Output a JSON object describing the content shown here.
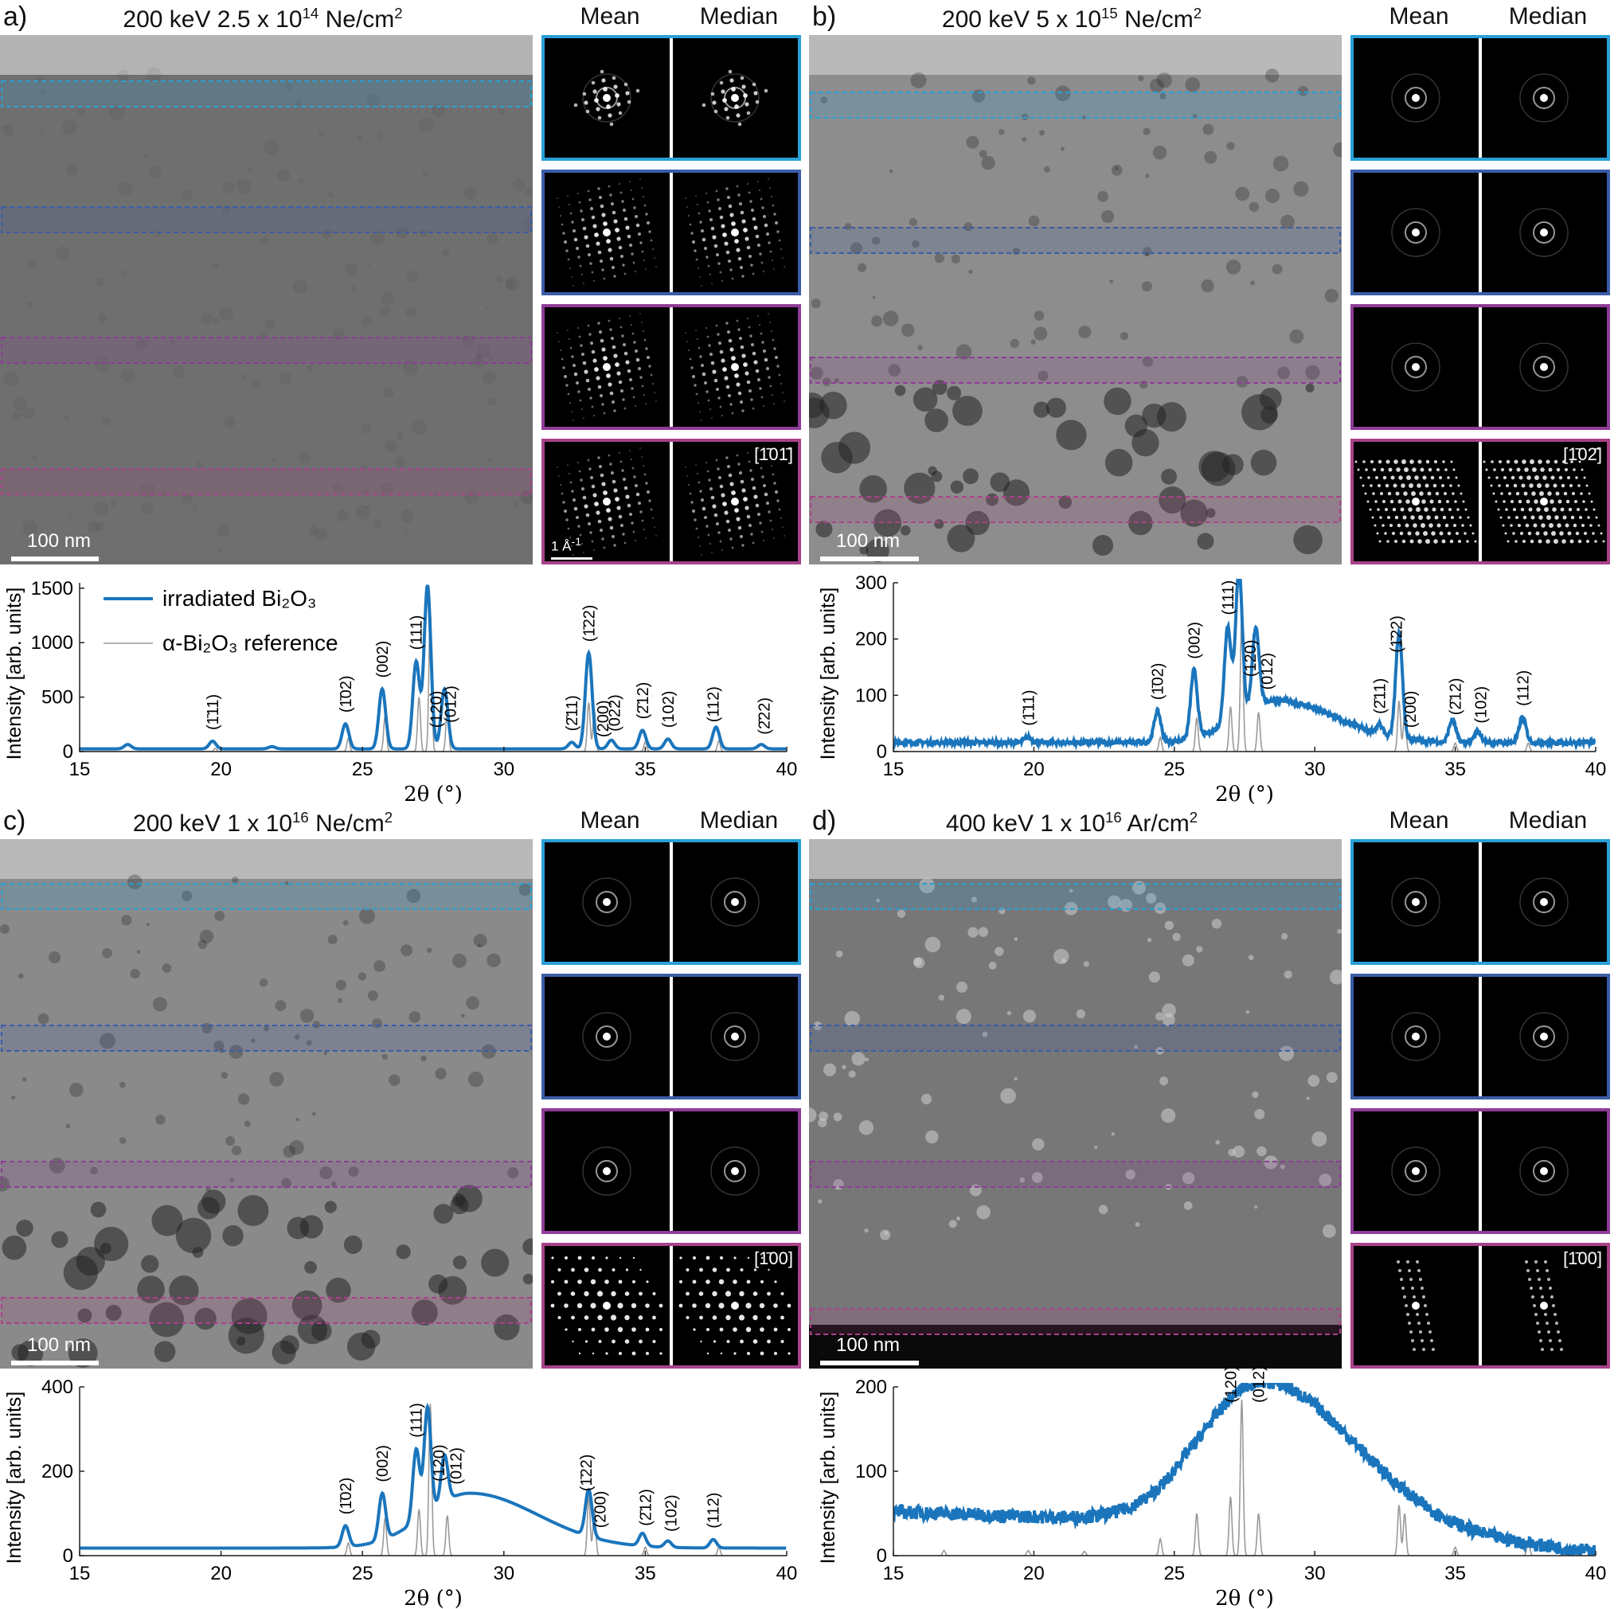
{
  "panels": [
    {
      "key": "a",
      "label": "a)",
      "title_prefix": "200 keV 2.5 x 10",
      "title_exp": "14",
      "title_suffix": " Ne/cm",
      "title_unit_exp": "2",
      "mean_label": "Mean",
      "median_label": "Median",
      "scale_label": "100 nm",
      "kscale_label": "1 Å",
      "zone_axis": "[1̄01̄]",
      "micro_tone": "#6f6f6f",
      "patterns": [
        "spot",
        "lattice",
        "lattice",
        "lattice"
      ],
      "chart_data": {
        "type": "line",
        "xlabel": "2θ (°)",
        "ylabel": "Intensity [arb. units]",
        "xlim": [
          15,
          40
        ],
        "ylim": [
          0,
          1550
        ],
        "xticks": [
          15,
          20,
          25,
          30,
          35,
          40
        ],
        "yticks": [
          0,
          500,
          1000,
          1500
        ],
        "series": [
          {
            "name": "irradiated Bi₂O₃",
            "color": "#1a75bc",
            "baseline": 25,
            "broad": [],
            "peaks": [
              [
                16.7,
                40
              ],
              [
                19.7,
                70
              ],
              [
                21.8,
                20
              ],
              [
                24.4,
                230
              ],
              [
                25.7,
                550
              ],
              [
                26.9,
                800
              ],
              [
                27.3,
                1500
              ],
              [
                27.9,
                550
              ],
              [
                32.4,
                60
              ],
              [
                33.0,
                880
              ],
              [
                33.8,
                80
              ],
              [
                34.9,
                170
              ],
              [
                35.8,
                90
              ],
              [
                37.5,
                200
              ],
              [
                39.1,
                40
              ]
            ]
          },
          {
            "name": "α-Bi₂O₃ reference",
            "color": "#9a9a9a",
            "baseline": 0,
            "broad": [],
            "peaks": [
              [
                19.8,
                30
              ],
              [
                24.5,
                120
              ],
              [
                25.8,
                330
              ],
              [
                27.0,
                500
              ],
              [
                27.4,
                1300
              ],
              [
                28.0,
                400
              ],
              [
                33.0,
                450
              ],
              [
                33.2,
                380
              ],
              [
                35.0,
                90
              ],
              [
                37.6,
                100
              ]
            ]
          }
        ],
        "annotations": [
          {
            "x": 19.7,
            "label": "(1̄11)"
          },
          {
            "x": 24.4,
            "label": "(1̄02)"
          },
          {
            "x": 25.7,
            "label": "(002)"
          },
          {
            "x": 26.9,
            "label": "(111)"
          },
          {
            "x": 27.6,
            "label": "(120)"
          },
          {
            "x": 28.1,
            "label": "(012)"
          },
          {
            "x": 32.4,
            "label": "(2̄11)"
          },
          {
            "x": 33.0,
            "label": "(1̄22)"
          },
          {
            "x": 33.5,
            "label": "(200)"
          },
          {
            "x": 33.9,
            "label": "(022)"
          },
          {
            "x": 34.9,
            "label": "(2̄12)"
          },
          {
            "x": 35.8,
            "label": "(102)"
          },
          {
            "x": 37.4,
            "label": "(112)"
          },
          {
            "x": 39.2,
            "label": "(2̄22)"
          }
        ],
        "legend": "top-left"
      }
    },
    {
      "key": "b",
      "label": "b)",
      "title_prefix": "200 keV 5 x 10",
      "title_exp": "15",
      "title_suffix": " Ne/cm",
      "title_unit_exp": "2",
      "mean_label": "Mean",
      "median_label": "Median",
      "scale_label": "100 nm",
      "zone_axis": "[1̄02̄]",
      "micro_tone": "#8d8d8d",
      "patterns": [
        "ring",
        "ring",
        "ring",
        "rows"
      ],
      "chart_data": {
        "type": "line",
        "xlabel": "2θ (°)",
        "ylabel": "Intensity [arb. units]",
        "xlim": [
          15,
          40
        ],
        "ylim": [
          0,
          300
        ],
        "xticks": [
          15,
          20,
          25,
          30,
          35,
          40
        ],
        "yticks": [
          0,
          100,
          200,
          300
        ],
        "series": [
          {
            "name": "irradiated Bi₂O₃",
            "color": "#1a75bc",
            "baseline": 16,
            "broad": [
              [
                28.6,
                1.4,
                75
              ]
            ],
            "peaks": [
              [
                19.8,
                10
              ],
              [
                24.4,
                55
              ],
              [
                25.7,
                120
              ],
              [
                26.9,
                170
              ],
              [
                27.3,
                260
              ],
              [
                27.9,
                140
              ],
              [
                32.3,
                15
              ],
              [
                33.0,
                185
              ],
              [
                34.9,
                40
              ],
              [
                35.8,
                20
              ],
              [
                37.4,
                45
              ]
            ]
          },
          {
            "name": "α-Bi₂O₃ reference",
            "color": "#9a9a9a",
            "baseline": 0,
            "broad": [],
            "peaks": [
              [
                24.5,
                25
              ],
              [
                25.8,
                60
              ],
              [
                27.0,
                80
              ],
              [
                27.4,
                240
              ],
              [
                28.0,
                70
              ],
              [
                33.0,
                90
              ],
              [
                33.2,
                70
              ],
              [
                35.0,
                15
              ],
              [
                37.6,
                15
              ]
            ]
          }
        ],
        "annotations": [
          {
            "x": 19.8,
            "label": "(1̄11)"
          },
          {
            "x": 24.4,
            "label": "(1̄02)"
          },
          {
            "x": 25.7,
            "label": "(002)"
          },
          {
            "x": 26.9,
            "label": "(111)"
          },
          {
            "x": 27.7,
            "label": "(120)"
          },
          {
            "x": 28.3,
            "label": "(012)"
          },
          {
            "x": 32.3,
            "label": "(2̄11)"
          },
          {
            "x": 32.9,
            "label": "(1̄22)"
          },
          {
            "x": 33.4,
            "label": "(200)"
          },
          {
            "x": 35.0,
            "label": "(2̄12)"
          },
          {
            "x": 35.9,
            "label": "(102)"
          },
          {
            "x": 37.4,
            "label": "(112)"
          }
        ]
      }
    },
    {
      "key": "c",
      "label": "c)",
      "title_prefix": "200 keV 1 x 10",
      "title_exp": "16",
      "title_suffix": " Ne/cm",
      "title_unit_exp": "2",
      "mean_label": "Mean",
      "median_label": "Median",
      "scale_label": "100 nm",
      "zone_axis": "[1̄00]",
      "micro_tone": "#8a8a8a",
      "patterns": [
        "ring",
        "ring",
        "ring",
        "hex"
      ],
      "chart_data": {
        "type": "line",
        "xlabel": "2θ (°)",
        "ylabel": "Intensity [arb. units]",
        "xlim": [
          15,
          40
        ],
        "ylim": [
          0,
          400
        ],
        "xticks": [
          15,
          20,
          25,
          30,
          35,
          40
        ],
        "yticks": [
          0,
          200,
          400
        ],
        "series": [
          {
            "name": "irradiated Bi₂O₃",
            "color": "#1a75bc",
            "baseline": 18,
            "broad": [
              [
                28.8,
                1.6,
                130
              ]
            ],
            "peaks": [
              [
                24.4,
                50
              ],
              [
                25.7,
                110
              ],
              [
                26.9,
                170
              ],
              [
                27.3,
                250
              ],
              [
                27.9,
                110
              ],
              [
                33.0,
                110
              ],
              [
                34.9,
                30
              ],
              [
                35.8,
                15
              ],
              [
                37.4,
                20
              ]
            ]
          },
          {
            "name": "α-Bi₂O₃ reference",
            "color": "#9a9a9a",
            "baseline": 0,
            "broad": [],
            "peaks": [
              [
                24.5,
                30
              ],
              [
                25.8,
                90
              ],
              [
                27.0,
                110
              ],
              [
                27.4,
                360
              ],
              [
                28.0,
                95
              ],
              [
                33.0,
                140
              ],
              [
                33.2,
                110
              ],
              [
                35.0,
                20
              ],
              [
                37.6,
                20
              ]
            ]
          }
        ],
        "annotations": [
          {
            "x": 24.4,
            "label": "(1̄02)"
          },
          {
            "x": 25.7,
            "label": "(002)"
          },
          {
            "x": 26.9,
            "label": "(111)"
          },
          {
            "x": 27.7,
            "label": "(120)"
          },
          {
            "x": 28.3,
            "label": "(012)"
          },
          {
            "x": 32.9,
            "label": "(1̄22)"
          },
          {
            "x": 33.4,
            "label": "(200)"
          },
          {
            "x": 35.0,
            "label": "(2̄12)"
          },
          {
            "x": 35.9,
            "label": "(102)"
          },
          {
            "x": 37.4,
            "label": "(112)"
          }
        ]
      }
    },
    {
      "key": "d",
      "label": "d)",
      "title_prefix": "400 keV 1 x 10",
      "title_exp": "16",
      "title_suffix": " Ar/cm",
      "title_unit_exp": "2",
      "mean_label": "Mean",
      "median_label": "Median",
      "scale_label": "100 nm",
      "zone_axis": "[1̄00]",
      "micro_tone": "#777777",
      "patterns": [
        "ring",
        "ring",
        "ring",
        "sparse"
      ],
      "chart_data": {
        "type": "line",
        "xlabel": "2θ (°)",
        "ylabel": "Intensity [arb. units]",
        "xlim": [
          15,
          40
        ],
        "ylim": [
          0,
          200
        ],
        "xticks": [
          15,
          20,
          25,
          30,
          35,
          40
        ],
        "yticks": [
          0,
          100,
          200
        ],
        "series": [
          {
            "name": "irradiated Bi₂O₃",
            "color": "#1a75bc",
            "baseline": 0,
            "broad": [
              [
                28.2,
                2.2,
                170
              ]
            ],
            "slope": [
              15,
              52,
              40,
              5
            ],
            "peaks": []
          },
          {
            "name": "α-Bi₂O₃ reference",
            "color": "#9a9a9a",
            "baseline": 0,
            "broad": [],
            "peaks": [
              [
                16.8,
                6
              ],
              [
                19.8,
                6
              ],
              [
                21.8,
                5
              ],
              [
                24.5,
                20
              ],
              [
                25.8,
                50
              ],
              [
                27.0,
                70
              ],
              [
                27.4,
                185
              ],
              [
                28.0,
                50
              ],
              [
                33.0,
                60
              ],
              [
                33.2,
                50
              ],
              [
                35.0,
                10
              ],
              [
                37.6,
                18
              ]
            ]
          }
        ],
        "annotations": [
          {
            "x": 27.0,
            "label": "(120)"
          },
          {
            "x": 28.0,
            "label": "(012)"
          }
        ]
      }
    }
  ],
  "colors": {
    "band1": "#29a0d8",
    "band2": "#3b5ca8",
    "band3": "#8e3c97",
    "band4": "#a8428a"
  }
}
